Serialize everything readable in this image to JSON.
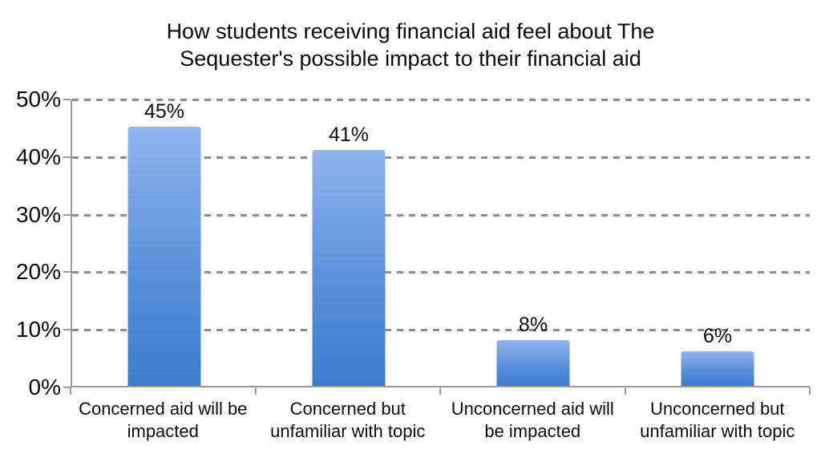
{
  "title": {
    "lines": [
      "How students receiving financial aid feel about The",
      "Sequester's possible impact to their financial aid"
    ]
  },
  "chart_data": {
    "type": "bar",
    "title": "How students receiving financial aid feel about The Sequester's possible impact to their financial aid",
    "categories": [
      "Concerned aid will be impacted",
      "Concerned but unfamiliar with topic",
      "Unconcerned aid will be impacted",
      "Unconcerned but unfamiliar with topic"
    ],
    "values": [
      45,
      41,
      8,
      6
    ],
    "value_labels": [
      "45%",
      "41%",
      "8%",
      "6%"
    ],
    "xlabel": "",
    "ylabel": "",
    "ylim": [
      0,
      50
    ],
    "ytick_step": 10,
    "yticks": [
      "0%",
      "10%",
      "20%",
      "30%",
      "40%",
      "50%"
    ],
    "grid": "horizontal-dashed",
    "legend": "none"
  },
  "colors": {
    "bar_top": "#8fb5ef",
    "bar_bottom": "#3d7ccd",
    "gridline": "#8d8d8d",
    "axis": "#9b9b9b",
    "text": "#0a0a0a",
    "background": "#ffffff"
  }
}
